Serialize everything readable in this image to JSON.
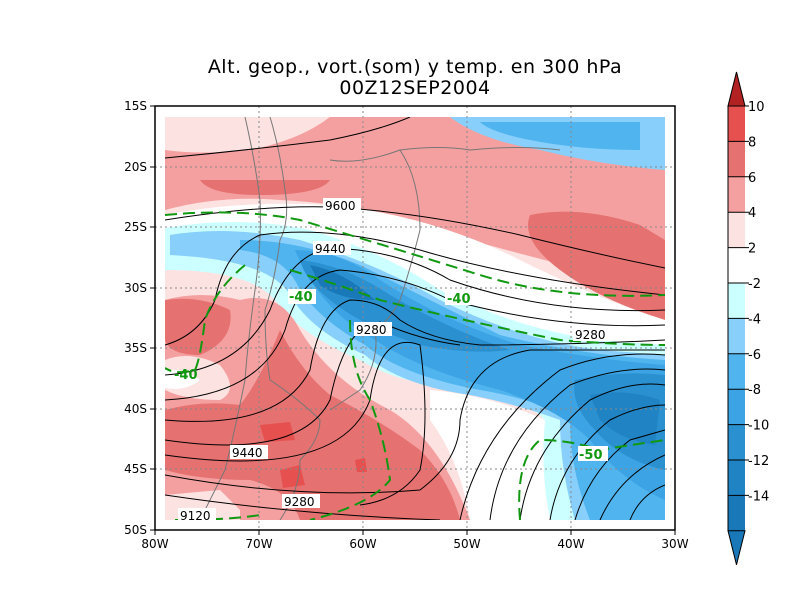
{
  "title": {
    "line1": "Alt. geop., vort.(som) y temp. en 300 hPa",
    "line2": "00Z12SEP2004"
  },
  "axes": {
    "y_ticks": [
      "15S",
      "20S",
      "25S",
      "30S",
      "35S",
      "40S",
      "45S",
      "50S"
    ],
    "x_ticks": [
      "80W",
      "70W",
      "60W",
      "50W",
      "40W",
      "30W"
    ]
  },
  "colorbar": {
    "labels": [
      "10",
      "8",
      "6",
      "4",
      "2",
      "-2",
      "-4",
      "-6",
      "-8",
      "-10",
      "-12",
      "-14"
    ],
    "colors": [
      "#b22222",
      "#e6504f",
      "#e57171",
      "#f5a0a0",
      "#fde2e2",
      "#ffffff",
      "#ccffff",
      "#88d0fb",
      "#50b4ee",
      "#3ca4e4",
      "#2a90d0",
      "#2083c4",
      "#1878b8"
    ]
  },
  "contour_labels": {
    "height": [
      "9600",
      "9440",
      "9280",
      "9280",
      "9440",
      "9280",
      "9120"
    ],
    "temperature": [
      "-40",
      "-40",
      "-40",
      "-50"
    ]
  }
}
